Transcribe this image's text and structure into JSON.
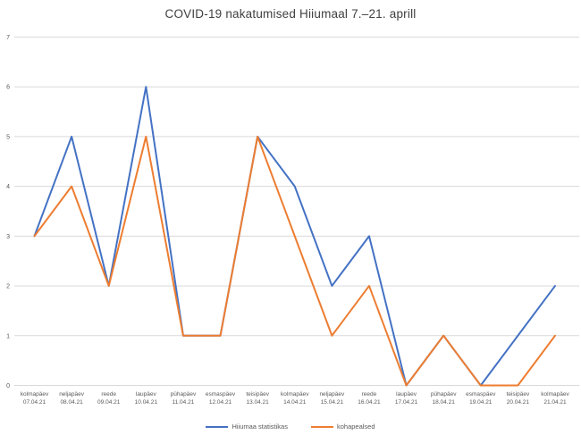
{
  "chart_data": {
    "type": "line",
    "title": "COVID-19 nakatumised Hiiumaal 7.–21. aprill",
    "categories": [
      {
        "day": "kolmapäev",
        "date": "07.04.21"
      },
      {
        "day": "neljapäev",
        "date": "08.04.21"
      },
      {
        "day": "reede",
        "date": "09.04.21"
      },
      {
        "day": "laupäev",
        "date": "10.04.21"
      },
      {
        "day": "pühapäev",
        "date": "11.04.21"
      },
      {
        "day": "esmaspäev",
        "date": "12.04.21"
      },
      {
        "day": "teisipäev",
        "date": "13.04.21"
      },
      {
        "day": "kolmapäev",
        "date": "14.04.21"
      },
      {
        "day": "neljapäev",
        "date": "15.04.21"
      },
      {
        "day": "reede",
        "date": "16.04.21"
      },
      {
        "day": "laupäev",
        "date": "17.04.21"
      },
      {
        "day": "pühapäev",
        "date": "18.04.21"
      },
      {
        "day": "esmaspäev",
        "date": "19.04.21"
      },
      {
        "day": "teisipäev",
        "date": "20.04.21"
      },
      {
        "day": "kolmapäev",
        "date": "21.04.21"
      }
    ],
    "series": [
      {
        "name": "Hiiumaa statistikas",
        "color": "#4472C4",
        "values": [
          3,
          5,
          2,
          6,
          1,
          1,
          5,
          4,
          2,
          3,
          0,
          1,
          0,
          1,
          2
        ]
      },
      {
        "name": "kohapealsed",
        "color": "#ED7D31",
        "values": [
          3,
          4,
          2,
          5,
          1,
          1,
          5,
          3,
          1,
          2,
          0,
          1,
          0,
          0,
          1
        ]
      }
    ],
    "xlabel": "",
    "ylabel": "",
    "ylim": [
      0,
      7
    ],
    "y_tick_step": 1,
    "grid": true,
    "legend_position": "bottom",
    "colors": {
      "gridline": "#D9D9D9",
      "axis_text": "#595959",
      "title_text": "#404040",
      "background": "#FFFFFF"
    }
  }
}
